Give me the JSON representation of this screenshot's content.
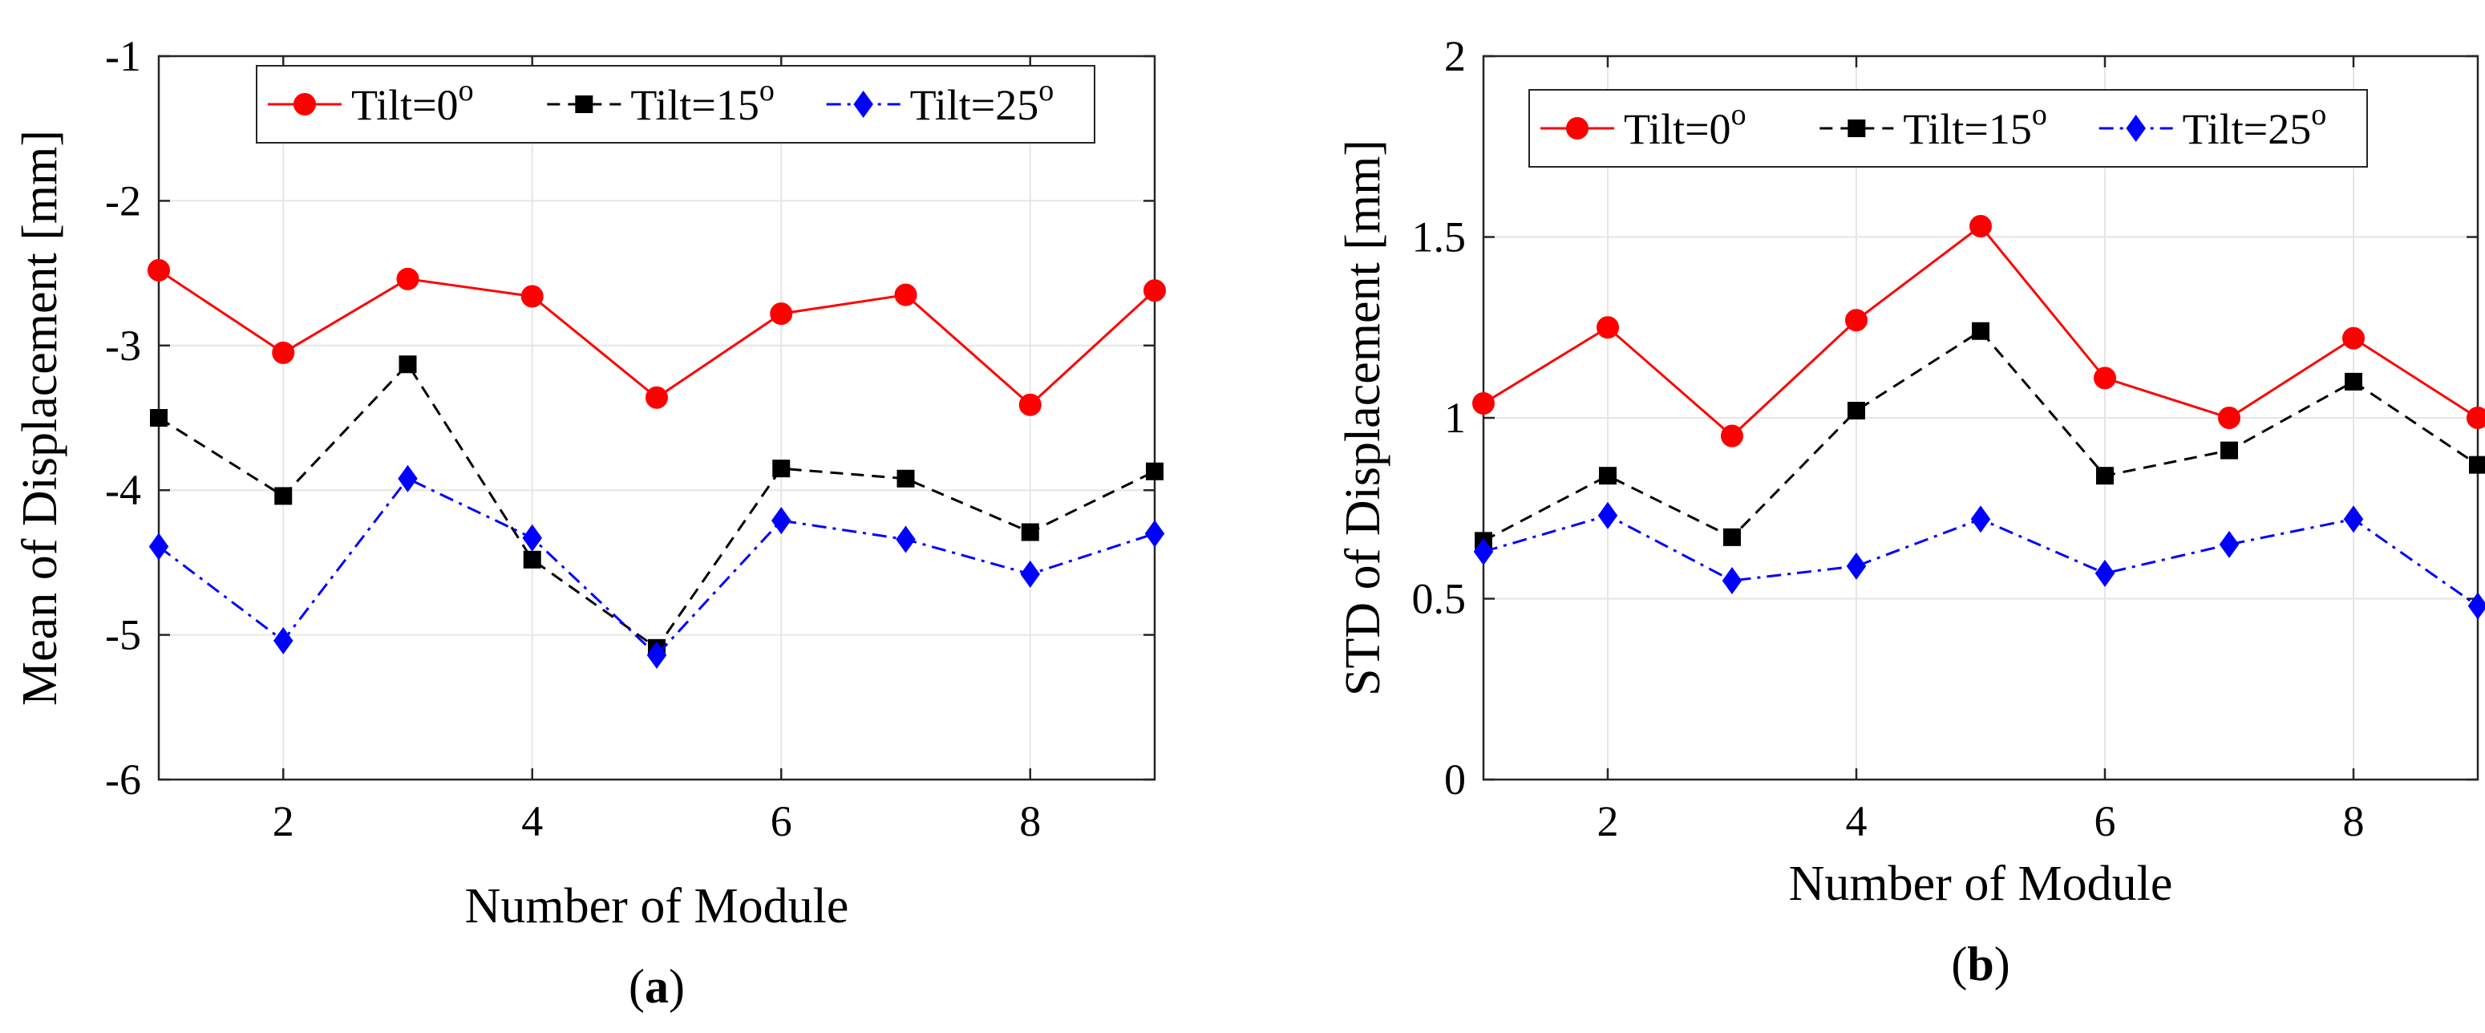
{
  "colors": {
    "tilt0": "#ff0000",
    "tilt15": "#000000",
    "tilt25": "#0000ff",
    "grid": "#e6e6e6",
    "axis": "#262626"
  },
  "chart_data": [
    {
      "type": "line",
      "panel_label": "(a)",
      "panel_letter": "a",
      "xlabel": "Number of Module",
      "ylabel": "Mean of Displacement [mm]",
      "x": [
        1,
        2,
        3,
        4,
        5,
        6,
        7,
        8,
        9
      ],
      "xlim": [
        1,
        9
      ],
      "ylim": [
        -6,
        -1
      ],
      "xticks": [
        2,
        4,
        6,
        8
      ],
      "yticks": [
        -6,
        -5,
        -4,
        -3,
        -2,
        -1
      ],
      "xtick_labels": [
        "2",
        "4",
        "6",
        "8"
      ],
      "ytick_labels": [
        "-6",
        "-5",
        "-4",
        "-3",
        "-2",
        "-1"
      ],
      "grid": true,
      "legend_position": "top-right",
      "series": [
        {
          "name": "Tilt=0",
          "sup": "o",
          "marker": "circle",
          "style": "solid",
          "color": "#ff0000",
          "values": [
            -2.48,
            -3.05,
            -2.54,
            -2.66,
            -3.36,
            -2.78,
            -2.65,
            -3.41,
            -2.62
          ]
        },
        {
          "name": "Tilt=15",
          "sup": "o",
          "marker": "square",
          "style": "dashed",
          "color": "#000000",
          "values": [
            -3.5,
            -4.04,
            -3.13,
            -4.48,
            -5.09,
            -3.85,
            -3.92,
            -4.29,
            -3.87
          ]
        },
        {
          "name": "Tilt=25",
          "sup": "o",
          "marker": "diamond",
          "style": "dashdot",
          "color": "#0000ff",
          "values": [
            -4.39,
            -5.04,
            -3.92,
            -4.33,
            -5.14,
            -4.21,
            -4.34,
            -4.58,
            -4.3
          ]
        }
      ]
    },
    {
      "type": "line",
      "panel_label": "(b)",
      "panel_letter": "b",
      "xlabel": "Number of Module",
      "ylabel": "STD of Displacement [mm]",
      "x": [
        1,
        2,
        3,
        4,
        5,
        6,
        7,
        8,
        9
      ],
      "xlim": [
        1,
        9
      ],
      "ylim": [
        0,
        2
      ],
      "xticks": [
        2,
        4,
        6,
        8
      ],
      "yticks": [
        0,
        0.5,
        1,
        1.5,
        2
      ],
      "xtick_labels": [
        "2",
        "4",
        "6",
        "8"
      ],
      "ytick_labels": [
        "0",
        "0.5",
        "1",
        "1.5",
        "2"
      ],
      "grid": true,
      "legend_position": "top-right",
      "series": [
        {
          "name": "Tilt=0",
          "sup": "o",
          "marker": "circle",
          "style": "solid",
          "color": "#ff0000",
          "values": [
            1.04,
            1.25,
            0.95,
            1.27,
            1.53,
            1.11,
            1.0,
            1.22,
            1.0
          ]
        },
        {
          "name": "Tilt=15",
          "sup": "o",
          "marker": "square",
          "style": "dashed",
          "color": "#000000",
          "values": [
            0.66,
            0.84,
            0.67,
            1.02,
            1.24,
            0.84,
            0.91,
            1.1,
            0.87
          ]
        },
        {
          "name": "Tilt=25",
          "sup": "o",
          "marker": "diamond",
          "style": "dashdot",
          "color": "#0000ff",
          "values": [
            0.63,
            0.73,
            0.55,
            0.59,
            0.72,
            0.57,
            0.65,
            0.72,
            0.48
          ]
        }
      ]
    }
  ]
}
